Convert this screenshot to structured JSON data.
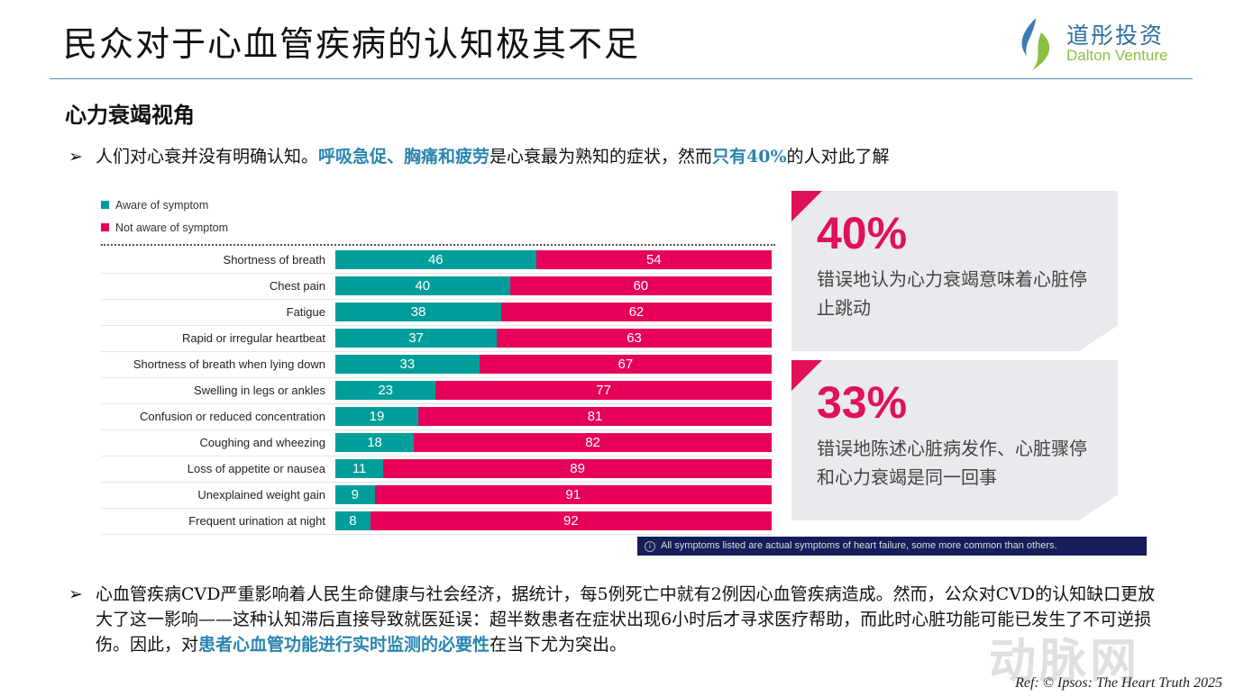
{
  "title": "民众对于心血管疾病的认知极其不足",
  "logo": {
    "cn": "道彤投资",
    "en": "Dalton Venture"
  },
  "subtitle": "心力衰竭视角",
  "bullet1": {
    "arrow": "➢",
    "p1": "人们对心衰并没有明确认知。",
    "h1": "呼吸急促、胸痛和疲劳",
    "p2": "是心衰最为熟知的症状，然而",
    "h2": "只有40%",
    "p3": "的人对此了解"
  },
  "chart_data": {
    "type": "bar",
    "orientation": "horizontal-stacked-100",
    "categories": [
      "Shortness of breath",
      "Chest pain",
      "Fatigue",
      "Rapid or irregular heartbeat",
      "Shortness of breath when lying down",
      "Swelling in legs or ankles",
      "Confusion or reduced concentration",
      "Coughing and wheezing",
      "Loss of appetite or nausea",
      "Unexplained weight gain",
      "Frequent urination at night"
    ],
    "series": [
      {
        "name": "Aware of symptom",
        "color": "#009e9a",
        "values": [
          46,
          40,
          38,
          37,
          33,
          23,
          19,
          18,
          11,
          9,
          8
        ]
      },
      {
        "name": "Not aware of symptom",
        "color": "#e6005a",
        "values": [
          54,
          60,
          62,
          63,
          67,
          77,
          81,
          82,
          89,
          91,
          92
        ]
      }
    ],
    "legend": "top-left"
  },
  "panels": [
    {
      "big": "40%",
      "desc": "错误地认为心力衰竭意味着心脏停止跳动"
    },
    {
      "big": "33%",
      "desc": "错误地陈述心脏病发作、心脏骤停和心力衰竭是同一回事"
    }
  ],
  "info": {
    "icon": "info-icon",
    "text": "All symptoms listed are actual symptoms of heart failure, some more common than others."
  },
  "bullet2": {
    "arrow": "➢",
    "p1": "心血管疾病CVD严重影响着人民生命健康与社会经济，据统计，每5例死亡中就有2例因心血管疾病造成。然而，公众对CVD的认知缺口更放大了这一影响——这种认知滞后直接导致就医延误：超半数患者在症状出现6小时后才寻求医疗帮助，而此时心脏功能可能已发生了不可逆损伤。因此，对",
    "h1": "患者心血管功能进行实时监测的必要性",
    "p2": "在当下尤为突出。"
  },
  "watermark": "动脉网",
  "ref": "Ref: © Ipsos: The Heart Truth 2025"
}
